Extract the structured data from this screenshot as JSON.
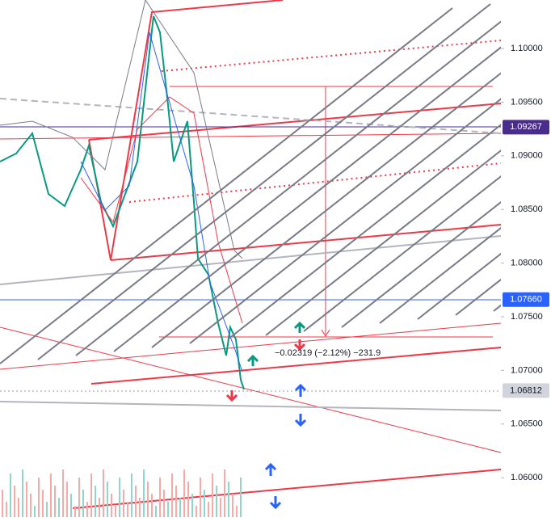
{
  "price_scale": {
    "ticks": [
      {
        "value": 1.1,
        "label": "1.10000"
      },
      {
        "value": 1.095,
        "label": "1.09500"
      },
      {
        "value": 1.09,
        "label": "1.09000"
      },
      {
        "value": 1.085,
        "label": "1.08500"
      },
      {
        "value": 1.08,
        "label": "1.08000"
      },
      {
        "value": 1.075,
        "label": "1.07500"
      },
      {
        "value": 1.07,
        "label": "1.07000"
      },
      {
        "value": 1.065,
        "label": "1.06500"
      },
      {
        "value": 1.06,
        "label": "1.06000"
      }
    ]
  },
  "price_labels": [
    {
      "value": 1.09267,
      "label": "1.09267",
      "color": "#4a2c8a"
    },
    {
      "value": 1.0766,
      "label": "1.07660",
      "color": "#2962ff"
    },
    {
      "value": 1.06812,
      "label": "1.06812",
      "color": "#d1d4dc"
    }
  ],
  "measure": {
    "label": "−0.02319 (−2.12%) −231.9"
  }
}
